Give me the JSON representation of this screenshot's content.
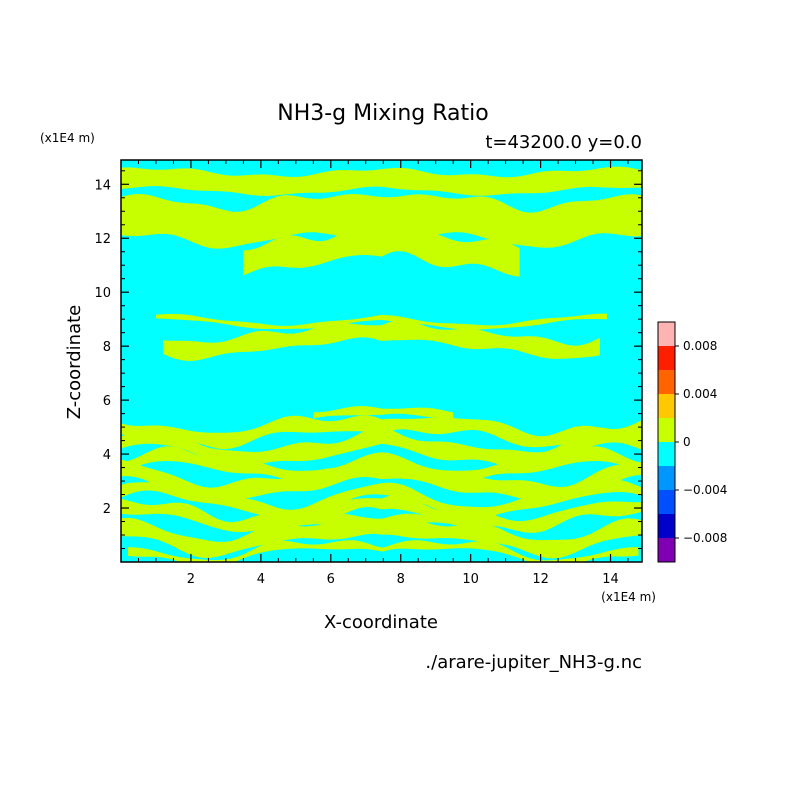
{
  "chart_data": {
    "type": "heatmap",
    "title": "NH3-g Mixing Ratio",
    "subtitle": "t=43200.0 y=0.0",
    "xlabel": "X-coordinate",
    "ylabel": "Z-coordinate",
    "x_unit": "(x1E4 m)",
    "y_unit": "(x1E4 m)",
    "xlim": [
      0,
      14.9
    ],
    "ylim": [
      0,
      14.9
    ],
    "x_ticks": [
      2,
      4,
      6,
      8,
      10,
      12,
      14
    ],
    "y_ticks": [
      2,
      4,
      6,
      8,
      10,
      12,
      14
    ],
    "grid": false,
    "background_level_color": "#00ffff",
    "bands": [
      {
        "level": 0,
        "z_center": 0.35,
        "half_thickness": 0.12,
        "edge_amp": 0.06,
        "x_from": 0.2,
        "x_to": 14.8,
        "wobble": [
          [
            0.9,
            0.35,
            0.0
          ],
          [
            2.1,
            0.12,
            1.0
          ]
        ]
      },
      {
        "level": 0,
        "z_center": 0.95,
        "half_thickness": 0.28,
        "edge_amp": 0.08,
        "x_from": 0.0,
        "x_to": 14.9,
        "wobble": [
          [
            0.9,
            0.35,
            0.5
          ],
          [
            1.8,
            0.15,
            2.0
          ]
        ]
      },
      {
        "level": 0,
        "z_center": 1.45,
        "half_thickness": 0.14,
        "edge_amp": 0.06,
        "x_from": 4.5,
        "x_to": 10.5,
        "wobble": [
          [
            1.2,
            0.15,
            0.3
          ]
        ]
      },
      {
        "level": 0,
        "z_center": 1.75,
        "half_thickness": 0.22,
        "edge_amp": 0.07,
        "x_from": 0.0,
        "x_to": 14.9,
        "wobble": [
          [
            0.9,
            0.35,
            1.3
          ],
          [
            2.4,
            0.12,
            0.6
          ]
        ]
      },
      {
        "level": 0,
        "z_center": 2.3,
        "half_thickness": 0.2,
        "edge_amp": 0.06,
        "x_from": 0.0,
        "x_to": 14.9,
        "wobble": [
          [
            0.9,
            0.45,
            2.1
          ],
          [
            2.0,
            0.1,
            0.2
          ]
        ]
      },
      {
        "level": 0,
        "z_center": 2.95,
        "half_thickness": 0.3,
        "edge_amp": 0.08,
        "x_from": 0.0,
        "x_to": 14.9,
        "wobble": [
          [
            0.9,
            0.4,
            0.9
          ],
          [
            1.7,
            0.15,
            1.7
          ]
        ]
      },
      {
        "level": 0,
        "z_center": 3.55,
        "half_thickness": 0.22,
        "edge_amp": 0.07,
        "x_from": 0.0,
        "x_to": 14.9,
        "wobble": [
          [
            0.9,
            0.35,
            2.6
          ],
          [
            2.2,
            0.12,
            0.4
          ]
        ]
      },
      {
        "level": 0,
        "z_center": 4.2,
        "half_thickness": 0.28,
        "edge_amp": 0.08,
        "x_from": 0.0,
        "x_to": 14.9,
        "wobble": [
          [
            0.9,
            0.4,
            1.6
          ],
          [
            1.9,
            0.15,
            2.4
          ]
        ]
      },
      {
        "level": 0,
        "z_center": 4.85,
        "half_thickness": 0.25,
        "edge_amp": 0.07,
        "x_from": 0.0,
        "x_to": 14.9,
        "wobble": [
          [
            0.9,
            0.3,
            0.2
          ],
          [
            2.3,
            0.12,
            1.1
          ]
        ]
      },
      {
        "level": 0,
        "z_center": 5.5,
        "half_thickness": 0.13,
        "edge_amp": 0.05,
        "x_from": 5.5,
        "x_to": 9.5,
        "wobble": [
          [
            1.5,
            0.1,
            0.8
          ]
        ]
      },
      {
        "level": 0,
        "z_center": 8.2,
        "half_thickness": 0.3,
        "edge_amp": 0.09,
        "x_from": 1.2,
        "x_to": 13.7,
        "wobble": [
          [
            0.9,
            0.35,
            0.4
          ],
          [
            1.6,
            0.15,
            1.5
          ]
        ]
      },
      {
        "level": 0,
        "z_center": 8.9,
        "half_thickness": 0.08,
        "edge_amp": 0.03,
        "x_from": 1.0,
        "x_to": 13.9,
        "wobble": [
          [
            0.9,
            0.2,
            2.2
          ]
        ]
      },
      {
        "level": 0,
        "z_center": 11.5,
        "half_thickness": 0.5,
        "edge_amp": 0.12,
        "x_from": 3.5,
        "x_to": 11.4,
        "wobble": [
          [
            0.9,
            0.3,
            1.1
          ],
          [
            2.5,
            0.15,
            0.3
          ]
        ]
      },
      {
        "level": 0,
        "z_center": 12.7,
        "half_thickness": 0.7,
        "edge_amp": 0.1,
        "x_from": 0.0,
        "x_to": 14.9,
        "wobble": [
          [
            0.9,
            0.25,
            0.7
          ],
          [
            1.9,
            0.12,
            2.6
          ]
        ]
      },
      {
        "level": 0,
        "z_center": 14.1,
        "half_thickness": 0.35,
        "edge_amp": 0.06,
        "x_from": 0.0,
        "x_to": 14.9,
        "wobble": [
          [
            0.9,
            0.15,
            1.9
          ]
        ]
      }
    ],
    "colorbar": {
      "levels": [
        {
          "from": -0.01,
          "to": -0.008,
          "color": "#7f00b2"
        },
        {
          "from": -0.008,
          "to": -0.006,
          "color": "#0000c8"
        },
        {
          "from": -0.006,
          "to": -0.004,
          "color": "#0050ff"
        },
        {
          "from": -0.004,
          "to": -0.002,
          "color": "#0096ff"
        },
        {
          "from": -0.002,
          "to": 0,
          "color": "#00ffff"
        },
        {
          "from": 0,
          "to": 0.002,
          "color": "#c8ff00"
        },
        {
          "from": 0.002,
          "to": 0.004,
          "color": "#ffc800"
        },
        {
          "from": 0.004,
          "to": 0.006,
          "color": "#ff6400"
        },
        {
          "from": 0.006,
          "to": 0.008,
          "color": "#ff1e00"
        },
        {
          "from": 0.008,
          "to": 0.01,
          "color": "#ffb4b4"
        }
      ],
      "tick_values": [
        0.008,
        0.004,
        0,
        -0.004,
        -0.008
      ],
      "tick_labels": [
        "0.008",
        "0.004",
        "0",
        "−0.004",
        "−0.008"
      ]
    },
    "source_file": "./arare-jupiter_NH3-g.nc"
  }
}
